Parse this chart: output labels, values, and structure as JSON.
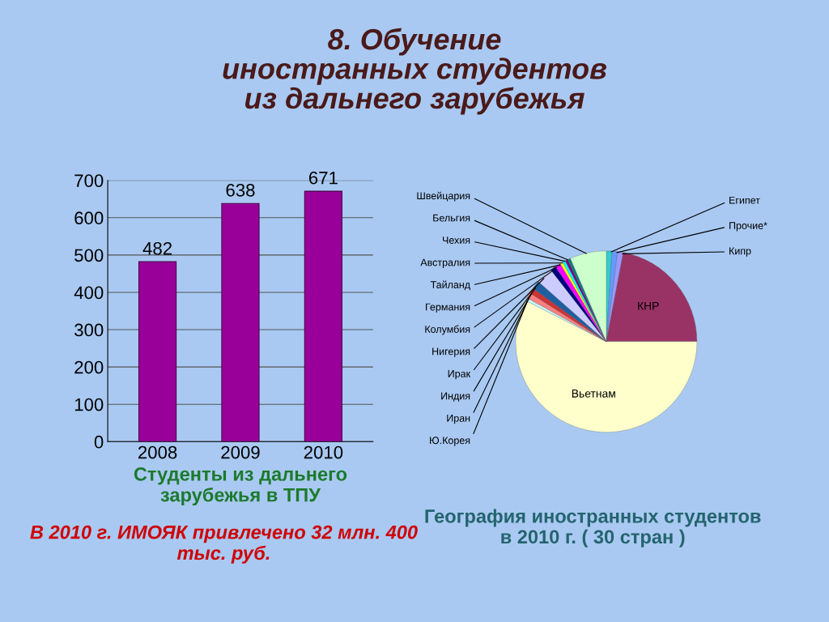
{
  "chart_data": [
    {
      "type": "bar",
      "title": "8. Обучение\nиностранных студентов\nиз дальнего зарубежья",
      "categories": [
        "2008",
        "2009",
        "2010"
      ],
      "values": [
        482,
        638,
        671
      ],
      "color": "#990099",
      "ylim": [
        0,
        700
      ],
      "yticks": [
        0,
        100,
        200,
        300,
        400,
        500,
        600,
        700
      ],
      "grid": "y",
      "data_labels": true,
      "xlabel": "Студенты из дальнего\nзарубежья в ТПУ",
      "annotations": [
        "В 2010 г. ИМОЯК привлечено 32 млн. 400\nтыс. руб."
      ]
    },
    {
      "type": "pie",
      "xlabel": "География иностранных студентов\nв 2010 г. ( 30 стран )",
      "categories": [
        "Египет",
        "Прочие*",
        "Кипр",
        "КНР",
        "Вьетнам",
        "Ю.Корея",
        "Иран",
        "Индия",
        "Ирак",
        "Нигерия",
        "Колумбия",
        "Германия",
        "Тайланд",
        "Австралия",
        "Чехия",
        "Бельгия",
        "Швейцария"
      ],
      "values": [
        1,
        1,
        1,
        22,
        57.5,
        0.5,
        1,
        1,
        1.5,
        3,
        1,
        1,
        0.5,
        0.5,
        0.5,
        0.5,
        6.5
      ],
      "colors": [
        "#33cccc",
        "#6699ff",
        "#9999ff",
        "#993366",
        "#ffffcc",
        "#ccffff",
        "#ff8080",
        "#cc3333",
        "#1f5fa0",
        "#ccccff",
        "#000080",
        "#ff00ff",
        "#ffff00",
        "#00ffff",
        "#800080",
        "#008080",
        "#ccffcc"
      ]
    }
  ]
}
